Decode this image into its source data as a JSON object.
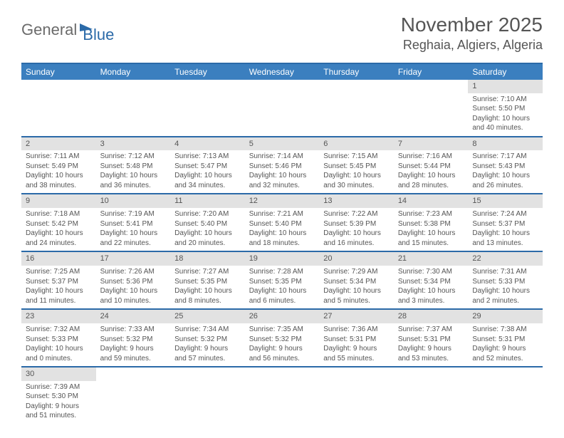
{
  "logo": {
    "part1": "General",
    "part2": "Blue"
  },
  "title": "November 2025",
  "location": "Reghaia, Algiers, Algeria",
  "colors": {
    "accent": "#2b6aa8",
    "header_bg": "#3b7fbf",
    "daynum_bg": "#e2e2e2",
    "text": "#555555",
    "background": "#ffffff"
  },
  "weekdays": [
    "Sunday",
    "Monday",
    "Tuesday",
    "Wednesday",
    "Thursday",
    "Friday",
    "Saturday"
  ],
  "weeks": [
    [
      null,
      null,
      null,
      null,
      null,
      null,
      {
        "n": "1",
        "sunrise": "Sunrise: 7:10 AM",
        "sunset": "Sunset: 5:50 PM",
        "daylight": "Daylight: 10 hours and 40 minutes."
      }
    ],
    [
      {
        "n": "2",
        "sunrise": "Sunrise: 7:11 AM",
        "sunset": "Sunset: 5:49 PM",
        "daylight": "Daylight: 10 hours and 38 minutes."
      },
      {
        "n": "3",
        "sunrise": "Sunrise: 7:12 AM",
        "sunset": "Sunset: 5:48 PM",
        "daylight": "Daylight: 10 hours and 36 minutes."
      },
      {
        "n": "4",
        "sunrise": "Sunrise: 7:13 AM",
        "sunset": "Sunset: 5:47 PM",
        "daylight": "Daylight: 10 hours and 34 minutes."
      },
      {
        "n": "5",
        "sunrise": "Sunrise: 7:14 AM",
        "sunset": "Sunset: 5:46 PM",
        "daylight": "Daylight: 10 hours and 32 minutes."
      },
      {
        "n": "6",
        "sunrise": "Sunrise: 7:15 AM",
        "sunset": "Sunset: 5:45 PM",
        "daylight": "Daylight: 10 hours and 30 minutes."
      },
      {
        "n": "7",
        "sunrise": "Sunrise: 7:16 AM",
        "sunset": "Sunset: 5:44 PM",
        "daylight": "Daylight: 10 hours and 28 minutes."
      },
      {
        "n": "8",
        "sunrise": "Sunrise: 7:17 AM",
        "sunset": "Sunset: 5:43 PM",
        "daylight": "Daylight: 10 hours and 26 minutes."
      }
    ],
    [
      {
        "n": "9",
        "sunrise": "Sunrise: 7:18 AM",
        "sunset": "Sunset: 5:42 PM",
        "daylight": "Daylight: 10 hours and 24 minutes."
      },
      {
        "n": "10",
        "sunrise": "Sunrise: 7:19 AM",
        "sunset": "Sunset: 5:41 PM",
        "daylight": "Daylight: 10 hours and 22 minutes."
      },
      {
        "n": "11",
        "sunrise": "Sunrise: 7:20 AM",
        "sunset": "Sunset: 5:40 PM",
        "daylight": "Daylight: 10 hours and 20 minutes."
      },
      {
        "n": "12",
        "sunrise": "Sunrise: 7:21 AM",
        "sunset": "Sunset: 5:40 PM",
        "daylight": "Daylight: 10 hours and 18 minutes."
      },
      {
        "n": "13",
        "sunrise": "Sunrise: 7:22 AM",
        "sunset": "Sunset: 5:39 PM",
        "daylight": "Daylight: 10 hours and 16 minutes."
      },
      {
        "n": "14",
        "sunrise": "Sunrise: 7:23 AM",
        "sunset": "Sunset: 5:38 PM",
        "daylight": "Daylight: 10 hours and 15 minutes."
      },
      {
        "n": "15",
        "sunrise": "Sunrise: 7:24 AM",
        "sunset": "Sunset: 5:37 PM",
        "daylight": "Daylight: 10 hours and 13 minutes."
      }
    ],
    [
      {
        "n": "16",
        "sunrise": "Sunrise: 7:25 AM",
        "sunset": "Sunset: 5:37 PM",
        "daylight": "Daylight: 10 hours and 11 minutes."
      },
      {
        "n": "17",
        "sunrise": "Sunrise: 7:26 AM",
        "sunset": "Sunset: 5:36 PM",
        "daylight": "Daylight: 10 hours and 10 minutes."
      },
      {
        "n": "18",
        "sunrise": "Sunrise: 7:27 AM",
        "sunset": "Sunset: 5:35 PM",
        "daylight": "Daylight: 10 hours and 8 minutes."
      },
      {
        "n": "19",
        "sunrise": "Sunrise: 7:28 AM",
        "sunset": "Sunset: 5:35 PM",
        "daylight": "Daylight: 10 hours and 6 minutes."
      },
      {
        "n": "20",
        "sunrise": "Sunrise: 7:29 AM",
        "sunset": "Sunset: 5:34 PM",
        "daylight": "Daylight: 10 hours and 5 minutes."
      },
      {
        "n": "21",
        "sunrise": "Sunrise: 7:30 AM",
        "sunset": "Sunset: 5:34 PM",
        "daylight": "Daylight: 10 hours and 3 minutes."
      },
      {
        "n": "22",
        "sunrise": "Sunrise: 7:31 AM",
        "sunset": "Sunset: 5:33 PM",
        "daylight": "Daylight: 10 hours and 2 minutes."
      }
    ],
    [
      {
        "n": "23",
        "sunrise": "Sunrise: 7:32 AM",
        "sunset": "Sunset: 5:33 PM",
        "daylight": "Daylight: 10 hours and 0 minutes."
      },
      {
        "n": "24",
        "sunrise": "Sunrise: 7:33 AM",
        "sunset": "Sunset: 5:32 PM",
        "daylight": "Daylight: 9 hours and 59 minutes."
      },
      {
        "n": "25",
        "sunrise": "Sunrise: 7:34 AM",
        "sunset": "Sunset: 5:32 PM",
        "daylight": "Daylight: 9 hours and 57 minutes."
      },
      {
        "n": "26",
        "sunrise": "Sunrise: 7:35 AM",
        "sunset": "Sunset: 5:32 PM",
        "daylight": "Daylight: 9 hours and 56 minutes."
      },
      {
        "n": "27",
        "sunrise": "Sunrise: 7:36 AM",
        "sunset": "Sunset: 5:31 PM",
        "daylight": "Daylight: 9 hours and 55 minutes."
      },
      {
        "n": "28",
        "sunrise": "Sunrise: 7:37 AM",
        "sunset": "Sunset: 5:31 PM",
        "daylight": "Daylight: 9 hours and 53 minutes."
      },
      {
        "n": "29",
        "sunrise": "Sunrise: 7:38 AM",
        "sunset": "Sunset: 5:31 PM",
        "daylight": "Daylight: 9 hours and 52 minutes."
      }
    ],
    [
      {
        "n": "30",
        "sunrise": "Sunrise: 7:39 AM",
        "sunset": "Sunset: 5:30 PM",
        "daylight": "Daylight: 9 hours and 51 minutes."
      },
      null,
      null,
      null,
      null,
      null,
      null
    ]
  ]
}
